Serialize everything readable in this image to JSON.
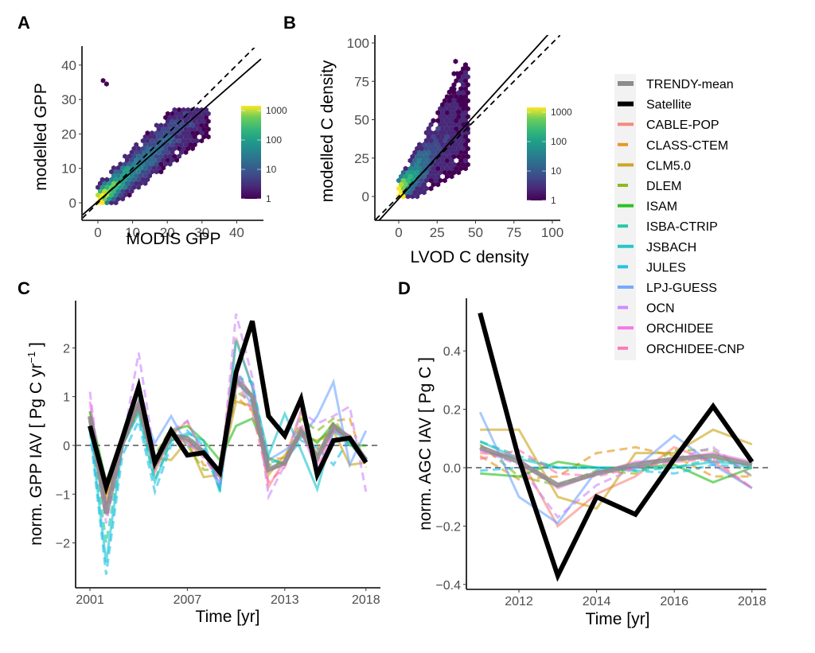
{
  "chart_data": [
    {
      "panel": "A",
      "type": "heatmap",
      "subtype": "hexbin-scatter",
      "xlabel": "MODIS GPP",
      "ylabel": "modelled GPP",
      "xlim": [
        -4.5,
        47
      ],
      "ylim": [
        -4.5,
        47
      ],
      "xticks": [
        "0",
        "10",
        "20",
        "30",
        "40"
      ],
      "yticks": [
        "0",
        "10",
        "20",
        "30",
        "40"
      ],
      "lines": [
        {
          "name": "regression",
          "style": "solid",
          "slope": 0.88,
          "intercept": 0.4
        },
        {
          "name": "1:1",
          "style": "dashed",
          "slope": 1.0,
          "intercept": 0.0
        }
      ],
      "colorbar": {
        "scale": "log",
        "ticks": [
          "1",
          "10",
          "100",
          "1000"
        ],
        "palette": "viridis"
      },
      "cloud": {
        "x_range": [
          0,
          32
        ],
        "y_range": [
          0,
          28
        ],
        "outliers": [
          [
            1.5,
            35.5
          ],
          [
            2.5,
            34.5
          ]
        ]
      }
    },
    {
      "panel": "B",
      "type": "heatmap",
      "subtype": "hexbin-scatter",
      "xlabel": "LVOD C density",
      "ylabel": "modelled C density",
      "xlim": [
        -15,
        105
      ],
      "ylim": [
        -15,
        105
      ],
      "xticks": [
        "0",
        "25",
        "50",
        "75",
        "100"
      ],
      "yticks": [
        "0",
        "25",
        "50",
        "75",
        "100"
      ],
      "lines": [
        {
          "name": "regression",
          "style": "solid",
          "slope": 1.1,
          "intercept": -1.5
        },
        {
          "name": "1:1",
          "style": "dashed",
          "slope": 1.0,
          "intercept": 0.0
        }
      ],
      "colorbar": {
        "scale": "log",
        "ticks": [
          "1",
          "10",
          "100",
          "1000"
        ],
        "palette": "viridis"
      },
      "cloud": {
        "x_range": [
          0,
          45
        ],
        "y_range": [
          0,
          88
        ]
      }
    },
    {
      "panel": "C",
      "type": "line",
      "xlabel": "Time [yr]",
      "ylabel": "norm. GPP IAV  [ Pg C yr",
      "ylabel_sup": "−1",
      "ylabel_end": " ]",
      "xlim": [
        2001,
        2018
      ],
      "ylim": [
        -2.9,
        2.9
      ],
      "xticks": [
        "2001",
        "2007",
        "2013",
        "2018"
      ],
      "yticks": [
        "−2",
        "−1",
        "0",
        "1",
        "2"
      ],
      "x": [
        2001,
        2002,
        2003,
        2004,
        2005,
        2006,
        2007,
        2008,
        2009,
        2010,
        2011,
        2012,
        2013,
        2014,
        2015,
        2016,
        2017,
        2018
      ],
      "series": [
        {
          "name": "CABLE-POP",
          "values": [
            0.55,
            -1.2,
            0.0,
            0.85,
            -0.55,
            0.2,
            0.5,
            -0.2,
            -0.6,
            2.2,
            1.2,
            -0.85,
            -0.3,
            0.7,
            -0.25,
            0.4,
            0.1,
            -0.3
          ]
        },
        {
          "name": "CLASS-CTEM",
          "values": [
            0.6,
            -1.1,
            0.1,
            0.75,
            -0.3,
            0.1,
            0.2,
            -0.4,
            -0.5,
            1.0,
            0.7,
            -0.3,
            -0.25,
            0.3,
            -0.1,
            0.5,
            0.55,
            -0.45
          ]
        },
        {
          "name": "CLM5.0",
          "values": [
            0.5,
            -1.0,
            0.05,
            0.8,
            -0.25,
            -0.3,
            0.1,
            -0.65,
            -0.6,
            0.9,
            0.8,
            -0.6,
            -0.2,
            0.2,
            0.1,
            0.3,
            -0.4,
            -0.35
          ]
        },
        {
          "name": "DLEM",
          "values": [
            0.7,
            -0.9,
            0.1,
            0.7,
            -0.2,
            0.35,
            0.0,
            -0.5,
            -0.5,
            1.1,
            0.9,
            -0.4,
            -0.35,
            0.55,
            0.3,
            0.55,
            0.05,
            -0.35
          ]
        },
        {
          "name": "ISAM",
          "values": [
            0.7,
            -0.75,
            0.2,
            0.85,
            -0.3,
            0.3,
            0.4,
            0.1,
            -0.3,
            0.4,
            0.55,
            -0.25,
            -0.4,
            0.3,
            0.05,
            0.45,
            0.0,
            0.0
          ]
        },
        {
          "name": "ISBA-CTRIP",
          "values": [
            0.5,
            -2.0,
            0.0,
            0.7,
            -0.7,
            0.1,
            0.2,
            -0.1,
            -0.9,
            1.6,
            0.9,
            -0.5,
            -0.4,
            0.3,
            -0.2,
            0.35,
            0.1,
            -0.3
          ]
        },
        {
          "name": "JSBACH",
          "values": [
            0.4,
            -2.4,
            0.0,
            0.65,
            -0.75,
            0.1,
            0.25,
            0.1,
            -0.95,
            2.15,
            1.2,
            -0.2,
            0.65,
            -0.1,
            -0.9,
            0.3,
            0.05,
            -0.35
          ]
        },
        {
          "name": "JULES",
          "values": [
            0.3,
            -2.65,
            -0.2,
            0.5,
            -0.95,
            0.0,
            0.3,
            0.0,
            -0.85,
            1.4,
            1.3,
            -0.35,
            -0.3,
            0.1,
            -0.05,
            -0.4,
            0.15,
            -0.35
          ]
        },
        {
          "name": "LPJ-GUESS",
          "values": [
            0.4,
            -1.3,
            0.15,
            0.85,
            0.05,
            0.6,
            0.0,
            -0.1,
            -0.8,
            1.4,
            0.8,
            -0.3,
            -0.1,
            0.15,
            0.6,
            1.3,
            -0.4,
            0.3
          ]
        },
        {
          "name": "OCN",
          "values": [
            1.1,
            -1.6,
            0.0,
            1.9,
            -0.25,
            0.3,
            0.5,
            -0.2,
            -0.8,
            2.7,
            1.4,
            -1.05,
            -0.4,
            0.7,
            0.45,
            0.6,
            0.8,
            -0.95
          ]
        },
        {
          "name": "ORCHIDEE",
          "values": [
            0.9,
            -1.3,
            0.05,
            0.9,
            -0.4,
            0.25,
            0.1,
            -0.2,
            -0.55,
            1.5,
            1.0,
            -0.5,
            -0.4,
            0.3,
            -0.5,
            0.3,
            0.15,
            -0.3
          ]
        },
        {
          "name": "ORCHIDEE-CNP",
          "values": [
            0.6,
            -1.45,
            0.0,
            0.85,
            -0.5,
            0.2,
            0.05,
            -0.25,
            -0.65,
            1.3,
            0.7,
            -0.75,
            -0.45,
            0.45,
            -0.35,
            0.35,
            0.2,
            -0.3
          ]
        },
        {
          "name": "TRENDY-mean",
          "values": [
            0.6,
            -1.4,
            0.05,
            0.85,
            -0.4,
            0.2,
            0.15,
            -0.15,
            -0.6,
            1.35,
            1.0,
            -0.5,
            -0.35,
            0.3,
            -0.25,
            0.4,
            0.15,
            -0.3
          ]
        },
        {
          "name": "Satellite",
          "values": [
            0.4,
            -0.85,
            0.15,
            1.2,
            -0.35,
            0.3,
            -0.2,
            -0.15,
            -0.55,
            1.5,
            2.55,
            0.6,
            0.2,
            0.95,
            -0.6,
            0.1,
            0.15,
            -0.35
          ]
        }
      ]
    },
    {
      "panel": "D",
      "type": "line",
      "xlabel": "Time [yr]",
      "ylabel": "norm. AGC IAV  [ Pg C ]",
      "xlim": [
        2010.8,
        2018.3
      ],
      "ylim": [
        -0.41,
        0.58
      ],
      "xticks": [
        "2012",
        "2014",
        "2016",
        "2018"
      ],
      "xtick_values": [
        2012,
        2014,
        2016,
        2018
      ],
      "yticks": [
        "−0.4",
        "−0.2",
        "0.0",
        "0.2",
        "0.4"
      ],
      "x": [
        2011,
        2012,
        2013,
        2014,
        2015,
        2016,
        2017,
        2018
      ],
      "series": [
        {
          "name": "CABLE-POP",
          "values": [
            0.05,
            0.04,
            -0.2,
            -0.09,
            -0.03,
            0.07,
            0.02,
            -0.07
          ]
        },
        {
          "name": "CLASS-CTEM",
          "values": [
            0.04,
            -0.04,
            -0.03,
            0.05,
            0.07,
            0.04,
            -0.03,
            -0.03
          ]
        },
        {
          "name": "CLM5.0",
          "values": [
            0.13,
            0.13,
            -0.1,
            -0.14,
            0.05,
            0.05,
            0.13,
            0.08
          ]
        },
        {
          "name": "DLEM",
          "values": [
            0.08,
            -0.03,
            -0.06,
            -0.01,
            -0.02,
            0.06,
            0.06,
            -0.03
          ]
        },
        {
          "name": "ISAM",
          "values": [
            -0.02,
            -0.03,
            0.02,
            0.0,
            0.0,
            0.01,
            -0.05,
            0.0
          ]
        },
        {
          "name": "ISBA-CTRIP",
          "values": [
            0.09,
            0.04,
            0.0,
            0.0,
            -0.01,
            0.0,
            0.03,
            0.0
          ]
        },
        {
          "name": "JSBACH",
          "values": [
            0.09,
            0.03,
            0.0,
            0.0,
            0.0,
            0.0,
            0.02,
            0.01
          ]
        },
        {
          "name": "JULES",
          "values": [
            -0.01,
            0.0,
            0.0,
            0.0,
            -0.01,
            -0.02,
            0.01,
            0.0
          ]
        },
        {
          "name": "LPJ-GUESS",
          "values": [
            0.19,
            -0.1,
            -0.19,
            -0.01,
            0.0,
            0.11,
            0.01,
            -0.07
          ]
        },
        {
          "name": "OCN",
          "values": [
            0.06,
            0.01,
            -0.17,
            -0.06,
            0.0,
            0.03,
            0.07,
            -0.03
          ]
        },
        {
          "name": "ORCHIDEE",
          "values": [
            0.06,
            0.03,
            -0.07,
            -0.02,
            0.02,
            0.03,
            0.05,
            0.02
          ]
        },
        {
          "name": "ORCHIDEE-CNP",
          "values": [
            0.03,
            0.06,
            -0.02,
            -0.03,
            0.0,
            0.02,
            0.03,
            -0.07
          ]
        },
        {
          "name": "TRENDY-mean",
          "values": [
            0.07,
            0.02,
            -0.06,
            -0.02,
            0.01,
            0.03,
            0.04,
            0.01
          ]
        },
        {
          "name": "Satellite",
          "values": [
            0.53,
            0.03,
            -0.37,
            -0.1,
            -0.16,
            0.03,
            0.21,
            0.02
          ]
        }
      ]
    }
  ],
  "panels": {
    "A": {
      "label": "A"
    },
    "B": {
      "label": "B"
    },
    "C": {
      "label": "C"
    },
    "D": {
      "label": "D"
    }
  },
  "legend": {
    "position": "right",
    "items": [
      {
        "name": "TRENDY-mean",
        "color": "#8c8c8c",
        "style": "thick"
      },
      {
        "name": "Satellite",
        "color": "#000000",
        "style": "thick"
      },
      {
        "name": "CABLE-POP",
        "color": "#f8766d",
        "style": "solid"
      },
      {
        "name": "CLASS-CTEM",
        "color": "#e38900",
        "style": "dashed"
      },
      {
        "name": "CLM5.0",
        "color": "#c49a00",
        "style": "solid"
      },
      {
        "name": "DLEM",
        "color": "#7cae00",
        "style": "dashed"
      },
      {
        "name": "ISAM",
        "color": "#0cb702",
        "style": "solid"
      },
      {
        "name": "ISBA-CTRIP",
        "color": "#00c19a",
        "style": "dashed"
      },
      {
        "name": "JSBACH",
        "color": "#00bfc4",
        "style": "solid"
      },
      {
        "name": "JULES",
        "color": "#00b8e7",
        "style": "dashed"
      },
      {
        "name": "LPJ-GUESS",
        "color": "#619cff",
        "style": "solid"
      },
      {
        "name": "OCN",
        "color": "#c77cff",
        "style": "dashed"
      },
      {
        "name": "ORCHIDEE",
        "color": "#f564e3",
        "style": "solid"
      },
      {
        "name": "ORCHIDEE-CNP",
        "color": "#ff64b0",
        "style": "dashed"
      }
    ]
  }
}
